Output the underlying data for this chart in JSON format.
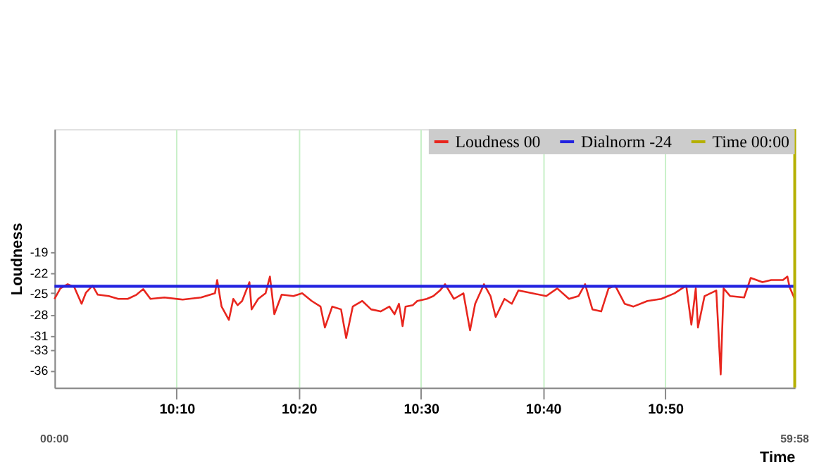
{
  "chart_data": {
    "type": "line",
    "xlabel": "Time",
    "ylabel": "Loudness",
    "xlim": [
      10.0,
      11.01
    ],
    "ylim": [
      -38.5,
      -1.5
    ],
    "xticks": [
      {
        "value": 10.1667,
        "label": "10:10"
      },
      {
        "value": 10.3333,
        "label": "10:20"
      },
      {
        "value": 10.5,
        "label": "10:30"
      },
      {
        "value": 10.6667,
        "label": "10:40"
      },
      {
        "value": 10.8333,
        "label": "10:50"
      }
    ],
    "yticks": [
      -19,
      -22,
      -25,
      -28,
      -31,
      -33,
      -36
    ],
    "grid": "x",
    "legend": "top right",
    "series": [
      {
        "name": "Loudness 00",
        "color": "#e8261e",
        "x": [
          10.0,
          10.008,
          10.018,
          10.027,
          10.037,
          10.043,
          10.052,
          10.059,
          10.074,
          10.087,
          10.1,
          10.112,
          10.121,
          10.131,
          10.15,
          10.175,
          10.2,
          10.219,
          10.222,
          10.228,
          10.238,
          10.244,
          10.25,
          10.256,
          10.266,
          10.269,
          10.278,
          10.288,
          10.294,
          10.3,
          10.31,
          10.326,
          10.338,
          10.351,
          10.363,
          10.369,
          10.379,
          10.391,
          10.398,
          10.407,
          10.42,
          10.432,
          10.445,
          10.457,
          10.464,
          10.47,
          10.475,
          10.479,
          10.489,
          10.495,
          10.508,
          10.517,
          10.526,
          10.533,
          10.545,
          10.558,
          10.567,
          10.574,
          10.586,
          10.595,
          10.602,
          10.614,
          10.624,
          10.633,
          10.652,
          10.671,
          10.686,
          10.702,
          10.715,
          10.724,
          10.734,
          10.746,
          10.756,
          10.765,
          10.778,
          10.79,
          10.809,
          10.828,
          10.846,
          10.862,
          10.869,
          10.875,
          10.878,
          10.887,
          10.903,
          10.909,
          10.913,
          10.922,
          10.941,
          10.95,
          10.966,
          10.978,
          10.994,
          11.0,
          11.003,
          11.01
        ],
        "values": [
          -25.8,
          -24.3,
          -23.7,
          -24.1,
          -26.5,
          -24.9,
          -23.9,
          -25.2,
          -25.4,
          -25.8,
          -25.8,
          -25.2,
          -24.4,
          -25.8,
          -25.6,
          -25.9,
          -25.6,
          -25.0,
          -23.1,
          -26.9,
          -28.8,
          -25.8,
          -26.7,
          -26.1,
          -23.4,
          -27.3,
          -25.8,
          -25.0,
          -22.6,
          -28.0,
          -25.2,
          -25.4,
          -25.0,
          -26.1,
          -26.9,
          -29.9,
          -26.9,
          -27.3,
          -31.4,
          -26.9,
          -26.1,
          -27.3,
          -27.6,
          -26.9,
          -28.0,
          -26.5,
          -29.7,
          -26.9,
          -26.7,
          -26.1,
          -25.8,
          -25.4,
          -24.6,
          -23.7,
          -25.8,
          -25.0,
          -30.3,
          -26.5,
          -23.7,
          -25.4,
          -28.4,
          -25.8,
          -26.5,
          -24.6,
          -25.0,
          -25.4,
          -24.3,
          -25.8,
          -25.4,
          -23.7,
          -27.3,
          -27.6,
          -24.3,
          -23.9,
          -26.5,
          -26.9,
          -26.1,
          -25.8,
          -25.0,
          -23.9,
          -29.5,
          -24.3,
          -29.9,
          -25.4,
          -24.6,
          -36.6,
          -24.3,
          -25.4,
          -25.6,
          -22.8,
          -23.4,
          -23.1,
          -23.1,
          -22.6,
          -24.1,
          -25.8
        ]
      },
      {
        "name": "Dialnorm -24",
        "color": "#2323e0",
        "x": [
          10.0,
          11.01
        ],
        "values": [
          -24,
          -24
        ]
      }
    ],
    "ref_lines": [
      {
        "axis": "x",
        "value": 11.01,
        "color": "#b5b000"
      }
    ],
    "annotations": [
      "00:00",
      "59:58",
      "Time 00:00"
    ]
  }
}
